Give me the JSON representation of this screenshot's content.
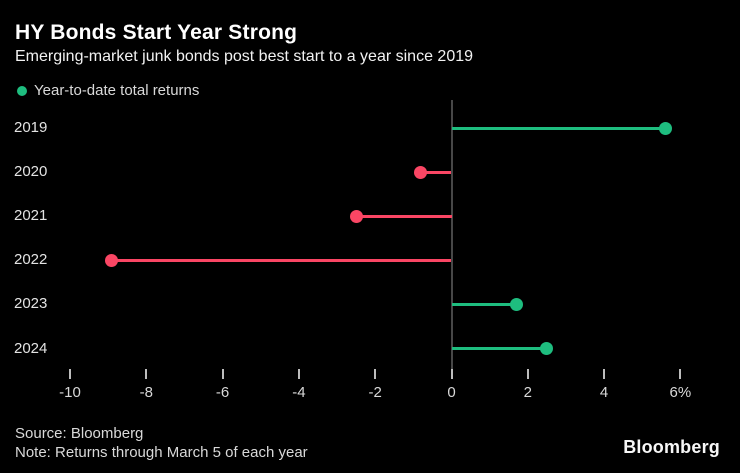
{
  "header": {
    "title": "HY Bonds Start Year Strong",
    "subtitle": "Emerging-market junk bonds post best start to a year since 2019"
  },
  "legend": {
    "label": "Year-to-date total returns",
    "marker_color": "#1ebd7f"
  },
  "chart_data": {
    "type": "bar",
    "style": "lollipop",
    "orientation": "horizontal",
    "title": "HY Bonds Start Year Strong",
    "subtitle": "Emerging-market junk bonds post best start to a year since 2019",
    "series_name": "Year-to-date total returns",
    "categories": [
      "2019",
      "2020",
      "2021",
      "2022",
      "2023",
      "2024"
    ],
    "values": [
      5.6,
      -0.8,
      -2.5,
      -8.9,
      1.7,
      2.5
    ],
    "unit": "%",
    "xlim": [
      -10,
      6
    ],
    "x_ticks": [
      -10,
      -8,
      -6,
      -4,
      -2,
      0,
      2,
      4,
      6
    ],
    "x_tick_labels": [
      "-10",
      "-8",
      "-6",
      "-4",
      "-2",
      "0",
      "2",
      "4",
      "6%"
    ],
    "grid": false,
    "legend_position": "top-left",
    "positive_color": "#1ebd7f",
    "negative_color": "#fa4664"
  },
  "footer": {
    "source": "Source: Bloomberg",
    "note": "Note: Returns through March 5 of each year",
    "logo": "Bloomberg"
  },
  "colors": {
    "background": "#000000",
    "title": "#ffffff",
    "subtitle": "#f2f2f2",
    "axis_line": "#474747",
    "tick": "#bdbdbd",
    "tick_label": "#d9d9d9",
    "year_label": "#e3e3e3",
    "footer_text": "#d9d9d9"
  }
}
